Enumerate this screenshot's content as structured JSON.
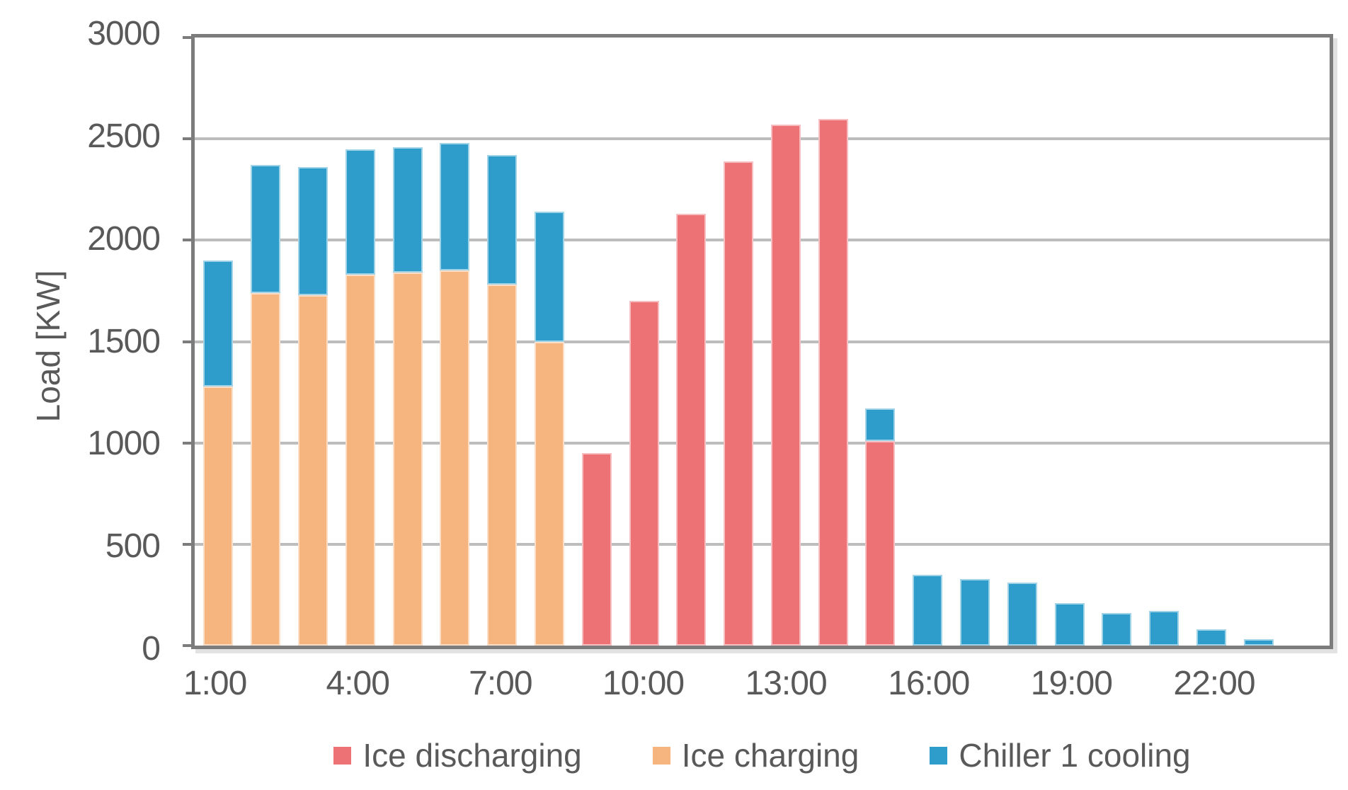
{
  "page": {
    "background": "#ffffff"
  },
  "colors": {
    "ice_discharging": "#EC7276",
    "ice_charging": "#F6B57E",
    "chiller_cooling": "#2E9DCB",
    "axis_line": "#7C7C7C",
    "gridline": "#BDBDBD",
    "text": "#595959"
  },
  "chart_data": {
    "type": "bar",
    "stacked": true,
    "title": "",
    "xlabel": "",
    "ylabel": "Load [KW]",
    "ylim": [
      0,
      3000
    ],
    "yticks": [
      0,
      500,
      1000,
      1500,
      2000,
      2500,
      3000
    ],
    "grid": "horizontal",
    "legend_position": "bottom",
    "hour_slots": [
      1,
      2,
      3,
      4,
      5,
      6,
      7,
      8,
      9,
      10,
      11,
      12,
      13,
      14,
      15,
      16,
      17,
      18,
      19,
      20,
      21,
      22,
      23,
      24
    ],
    "xticks": [
      {
        "hour": 1,
        "label": "1:00"
      },
      {
        "hour": 4,
        "label": "4:00"
      },
      {
        "hour": 7,
        "label": "7:00"
      },
      {
        "hour": 10,
        "label": "10:00"
      },
      {
        "hour": 13,
        "label": "13:00"
      },
      {
        "hour": 16,
        "label": "16:00"
      },
      {
        "hour": 19,
        "label": "19:00"
      },
      {
        "hour": 22,
        "label": "22:00"
      }
    ],
    "series": [
      {
        "name": "Ice discharging",
        "color": "#EC7276",
        "values": [
          0,
          0,
          0,
          0,
          0,
          0,
          0,
          0,
          950,
          1700,
          2130,
          2390,
          2570,
          2600,
          1010,
          0,
          0,
          0,
          0,
          0,
          0,
          0,
          0,
          0
        ]
      },
      {
        "name": "Ice charging",
        "color": "#F6B57E",
        "values": [
          1280,
          1740,
          1730,
          1830,
          1840,
          1850,
          1780,
          1500,
          0,
          0,
          0,
          0,
          0,
          0,
          0,
          0,
          0,
          0,
          0,
          0,
          0,
          0,
          0,
          0
        ]
      },
      {
        "name": "Chiller 1 cooling",
        "color": "#2E9DCB",
        "values": [
          620,
          630,
          630,
          620,
          620,
          630,
          640,
          640,
          0,
          0,
          0,
          0,
          0,
          0,
          160,
          350,
          330,
          310,
          210,
          160,
          170,
          80,
          30,
          0
        ]
      }
    ]
  }
}
